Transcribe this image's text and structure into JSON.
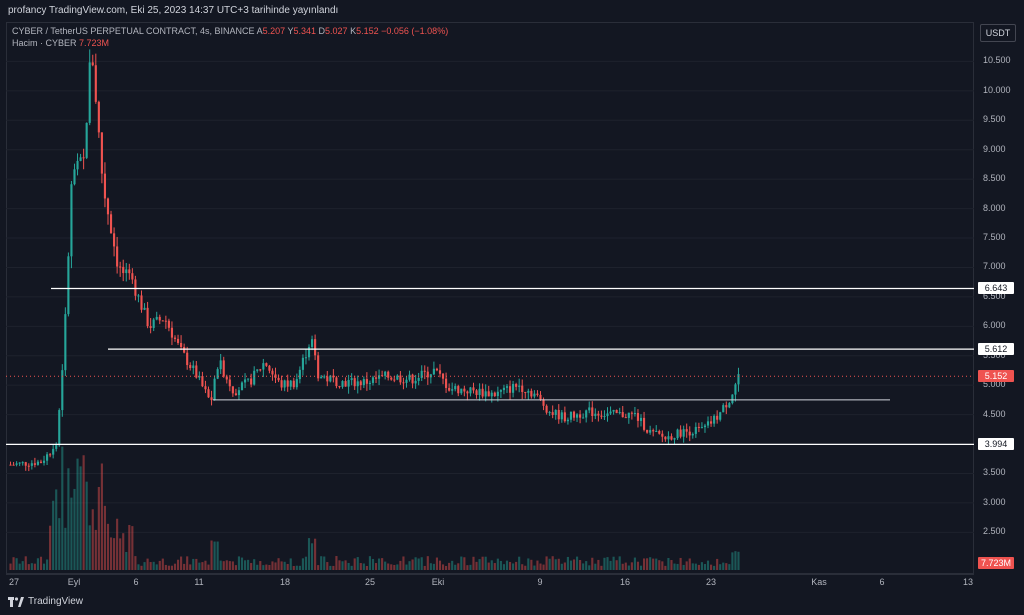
{
  "header": {
    "publish_line": "profancy TradingView.com, Eki 25, 2023 14:37 UTC+3 tarihinde yayınlandı"
  },
  "legend": {
    "symbol": "CYBER / TetherUS PERPETUAL CONTRACT, 4s, BINANCE",
    "open_label": "A",
    "open_value": "5.207",
    "high_label": "Y",
    "high_value": "5.341",
    "low_label": "D",
    "low_value": "5.027",
    "close_label": "K",
    "close_value": "5.152",
    "change": "−0.056 (−1.08%)",
    "volume_label": "Hacim · CYBER",
    "volume_value": "7.723M"
  },
  "price_axis": {
    "currency": "USDT",
    "ticks": [
      "10.500",
      "10.000",
      "9.500",
      "9.000",
      "8.500",
      "8.000",
      "7.500",
      "7.000",
      "6.500",
      "6.000",
      "5.500",
      "5.000",
      "4.500",
      "4.000",
      "3.500",
      "3.000",
      "2.500"
    ],
    "badges": {
      "level_high": "6.643",
      "level_mid": "5.612",
      "last_price": "5.152",
      "level_low": "3.994",
      "volume": "7.723M"
    }
  },
  "time_axis": {
    "ticks": [
      "27",
      "Eyl",
      "6",
      "11",
      "18",
      "25",
      "Eki",
      "9",
      "16",
      "23",
      "Kas",
      "6",
      "13"
    ]
  },
  "footer": {
    "brand": "TradingView"
  },
  "colors": {
    "up": "#26a69a",
    "down": "#ef5350",
    "level_line": "#ffffff",
    "background": "#131722"
  },
  "chart_data": {
    "type": "candlestick",
    "symbol": "CYBER / TetherUS PERPETUAL CONTRACT",
    "interval": "4s",
    "exchange": "BINANCE",
    "ylim": [
      2.2,
      11.0
    ],
    "last_price": 5.152,
    "horizontal_levels": [
      6.643,
      5.612,
      3.994
    ],
    "support_line_level": 4.75,
    "price_path": [
      {
        "t": 0,
        "p": 3.65
      },
      {
        "t": 4,
        "p": 3.7
      },
      {
        "t": 6,
        "p": 4.0
      },
      {
        "t": 7,
        "p": 5.8
      },
      {
        "t": 8,
        "p": 8.6
      },
      {
        "t": 9.5,
        "p": 8.8
      },
      {
        "t": 10.5,
        "p": 10.8
      },
      {
        "t": 12,
        "p": 8.4
      },
      {
        "t": 14,
        "p": 7.0
      },
      {
        "t": 16,
        "p": 6.7
      },
      {
        "t": 18,
        "p": 6.0
      },
      {
        "t": 20,
        "p": 6.15
      },
      {
        "t": 22,
        "p": 5.6
      },
      {
        "t": 24,
        "p": 5.2
      },
      {
        "t": 26,
        "p": 4.7
      },
      {
        "t": 27,
        "p": 5.4
      },
      {
        "t": 29,
        "p": 4.9
      },
      {
        "t": 31,
        "p": 5.05
      },
      {
        "t": 33,
        "p": 5.4
      },
      {
        "t": 35,
        "p": 5.0
      },
      {
        "t": 37,
        "p": 5.05
      },
      {
        "t": 39,
        "p": 5.8
      },
      {
        "t": 40,
        "p": 5.15
      },
      {
        "t": 43,
        "p": 5.05
      },
      {
        "t": 46,
        "p": 5.05
      },
      {
        "t": 49,
        "p": 5.15
      },
      {
        "t": 52,
        "p": 5.1
      },
      {
        "t": 55,
        "p": 5.25
      },
      {
        "t": 57,
        "p": 4.95
      },
      {
        "t": 60,
        "p": 4.9
      },
      {
        "t": 63,
        "p": 4.85
      },
      {
        "t": 66,
        "p": 5.0
      },
      {
        "t": 68,
        "p": 4.85
      },
      {
        "t": 70,
        "p": 4.55
      },
      {
        "t": 72,
        "p": 4.45
      },
      {
        "t": 75,
        "p": 4.55
      },
      {
        "t": 78,
        "p": 4.5
      },
      {
        "t": 81,
        "p": 4.5
      },
      {
        "t": 83,
        "p": 4.2
      },
      {
        "t": 85,
        "p": 4.1
      },
      {
        "t": 87,
        "p": 4.2
      },
      {
        "t": 90,
        "p": 4.25
      },
      {
        "t": 92,
        "p": 4.5
      },
      {
        "t": 93.5,
        "p": 4.8
      },
      {
        "t": 94.5,
        "p": 5.15
      }
    ]
  }
}
